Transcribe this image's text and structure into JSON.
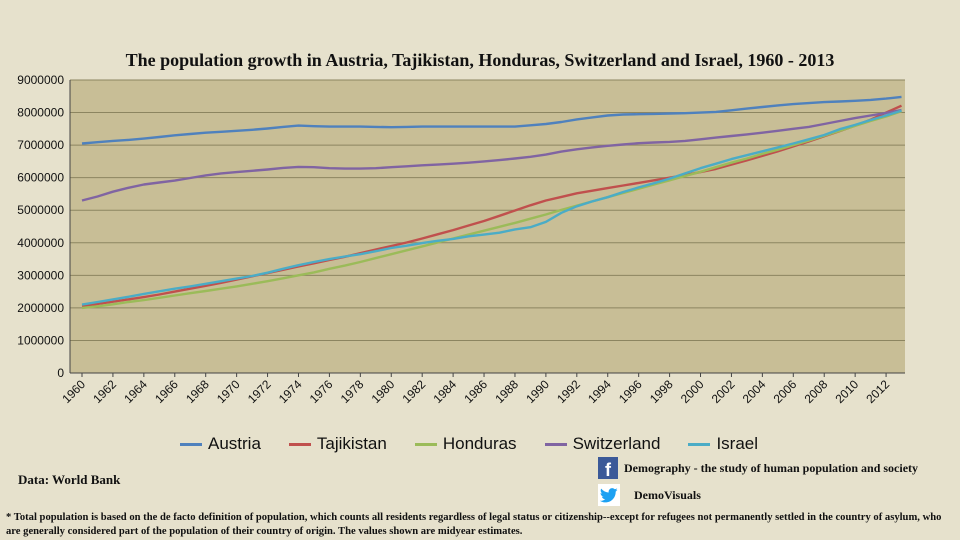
{
  "chart_data": {
    "type": "line",
    "title": "The population growth in Austria, Tajikistan, Honduras, Switzerland and Israel, 1960 - 2013",
    "x": [
      1960,
      1961,
      1962,
      1963,
      1964,
      1965,
      1966,
      1967,
      1968,
      1969,
      1970,
      1971,
      1972,
      1973,
      1974,
      1975,
      1976,
      1977,
      1978,
      1979,
      1980,
      1981,
      1982,
      1983,
      1984,
      1985,
      1986,
      1987,
      1988,
      1989,
      1990,
      1991,
      1992,
      1993,
      1994,
      1995,
      1996,
      1997,
      1998,
      1999,
      2000,
      2001,
      2002,
      2003,
      2004,
      2005,
      2006,
      2007,
      2008,
      2009,
      2010,
      2011,
      2012,
      2013
    ],
    "x_tick_labels": [
      "1960",
      "1962",
      "1964",
      "1966",
      "1968",
      "1970",
      "1972",
      "1974",
      "1976",
      "1978",
      "1980",
      "1982",
      "1984",
      "1986",
      "1988",
      "1990",
      "1992",
      "1994",
      "1996",
      "1998",
      "2000",
      "2002",
      "2004",
      "2006",
      "2008",
      "2010",
      "2012"
    ],
    "ylim": [
      0,
      9000000
    ],
    "y_tick_labels": [
      "0",
      "1000000",
      "2000000",
      "3000000",
      "4000000",
      "5000000",
      "6000000",
      "7000000",
      "8000000",
      "9000000"
    ],
    "grid": true,
    "legend_position": "bottom",
    "series": [
      {
        "name": "Austria",
        "color": "#4f81bd",
        "values": [
          7050000,
          7090000,
          7130000,
          7160000,
          7200000,
          7250000,
          7300000,
          7340000,
          7380000,
          7410000,
          7440000,
          7470000,
          7510000,
          7560000,
          7600000,
          7580000,
          7570000,
          7570000,
          7570000,
          7560000,
          7550000,
          7560000,
          7570000,
          7570000,
          7570000,
          7570000,
          7570000,
          7570000,
          7570000,
          7610000,
          7650000,
          7710000,
          7790000,
          7850000,
          7910000,
          7940000,
          7950000,
          7960000,
          7970000,
          7980000,
          8000000,
          8020000,
          8070000,
          8120000,
          8170000,
          8220000,
          8260000,
          8290000,
          8320000,
          8340000,
          8360000,
          8390000,
          8430000,
          8480000
        ]
      },
      {
        "name": "Tajikistan",
        "color": "#c0504d",
        "values": [
          2060000,
          2120000,
          2190000,
          2260000,
          2330000,
          2410000,
          2500000,
          2590000,
          2680000,
          2770000,
          2870000,
          2970000,
          3070000,
          3170000,
          3270000,
          3370000,
          3470000,
          3570000,
          3680000,
          3790000,
          3900000,
          4010000,
          4130000,
          4260000,
          4390000,
          4530000,
          4670000,
          4830000,
          4990000,
          5150000,
          5300000,
          5410000,
          5520000,
          5600000,
          5680000,
          5760000,
          5840000,
          5920000,
          6000000,
          6080000,
          6170000,
          6270000,
          6400000,
          6530000,
          6670000,
          6810000,
          6960000,
          7110000,
          7270000,
          7430000,
          7600000,
          7780000,
          8000000,
          8210000
        ]
      },
      {
        "name": "Honduras",
        "color": "#9bbb59",
        "values": [
          2000000,
          2050000,
          2110000,
          2180000,
          2240000,
          2310000,
          2380000,
          2450000,
          2520000,
          2590000,
          2660000,
          2740000,
          2820000,
          2910000,
          3000000,
          3090000,
          3200000,
          3300000,
          3410000,
          3530000,
          3650000,
          3770000,
          3890000,
          4010000,
          4130000,
          4250000,
          4370000,
          4490000,
          4610000,
          4740000,
          4870000,
          5010000,
          5140000,
          5270000,
          5400000,
          5530000,
          5660000,
          5790000,
          5920000,
          6050000,
          6180000,
          6320000,
          6460000,
          6590000,
          6730000,
          6860000,
          7000000,
          7140000,
          7290000,
          7440000,
          7590000,
          7740000,
          7880000,
          8040000
        ]
      },
      {
        "name": "Switzerland",
        "color": "#8064a2",
        "values": [
          5300000,
          5420000,
          5570000,
          5690000,
          5790000,
          5850000,
          5910000,
          5990000,
          6070000,
          6130000,
          6170000,
          6210000,
          6250000,
          6300000,
          6330000,
          6320000,
          6290000,
          6280000,
          6280000,
          6290000,
          6320000,
          6350000,
          6380000,
          6400000,
          6430000,
          6460000,
          6500000,
          6540000,
          6590000,
          6640000,
          6710000,
          6800000,
          6870000,
          6930000,
          6980000,
          7020000,
          7060000,
          7080000,
          7100000,
          7130000,
          7180000,
          7230000,
          7280000,
          7330000,
          7380000,
          7440000,
          7500000,
          7560000,
          7650000,
          7740000,
          7830000,
          7910000,
          7990000,
          8080000
        ]
      },
      {
        "name": "Israel",
        "color": "#4bacc6",
        "values": [
          2100000,
          2180000,
          2260000,
          2340000,
          2430000,
          2510000,
          2590000,
          2660000,
          2740000,
          2820000,
          2900000,
          2980000,
          3080000,
          3200000,
          3310000,
          3410000,
          3500000,
          3580000,
          3650000,
          3740000,
          3840000,
          3910000,
          3990000,
          4060000,
          4120000,
          4200000,
          4250000,
          4310000,
          4410000,
          4480000,
          4640000,
          4920000,
          5120000,
          5270000,
          5400000,
          5560000,
          5700000,
          5830000,
          5970000,
          6130000,
          6290000,
          6430000,
          6570000,
          6690000,
          6810000,
          6930000,
          7050000,
          7180000,
          7310000,
          7490000,
          7620000,
          7770000,
          7910000,
          8060000
        ]
      }
    ]
  },
  "source": "Data: World Bank",
  "social": {
    "facebook_icon": "facebook-icon",
    "facebook_glyph": "f",
    "facebook_text": "Demography - the study of human population and society",
    "twitter_icon": "twitter-icon",
    "twitter_text": "DemoVisuals"
  },
  "footnote": "* Total population is based on the de facto definition of population, which counts all residents regardless of legal status or citizenship--except for refugees not permanently settled in the country of asylum, who are generally considered part of the population of their country of origin. The values shown are midyear estimates.",
  "colors": {
    "background": "#e6e1cc",
    "plot_area": "#c8be96",
    "grid": "#8c8560"
  }
}
